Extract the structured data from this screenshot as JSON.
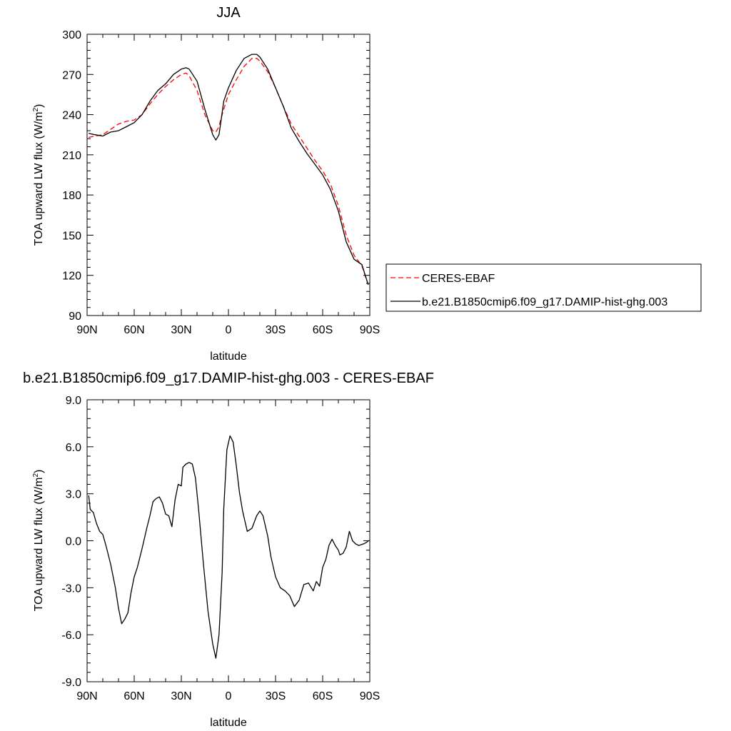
{
  "chart_data": [
    {
      "type": "line",
      "title": "JJA",
      "xlabel": "latitude",
      "ylabel": "TOA upward LW flux (W/m",
      "ylabel_sup": "2",
      "ylabel_close": ")",
      "xlim": [
        90,
        -90
      ],
      "ylim": [
        90,
        300
      ],
      "xticks": [
        90,
        60,
        30,
        0,
        -30,
        -60,
        -90
      ],
      "xtick_labels": [
        "90N",
        "60N",
        "30N",
        "0",
        "30S",
        "60S",
        "90S"
      ],
      "yticks": [
        90,
        120,
        150,
        180,
        210,
        240,
        270,
        300
      ],
      "ytick_labels": [
        "90",
        "120",
        "150",
        "180",
        "210",
        "240",
        "270",
        "300"
      ],
      "legend_position": "right",
      "series": [
        {
          "name": "CERES-EBAF",
          "color": "#ff0000",
          "dash": "dashed",
          "x": [
            89,
            85,
            80,
            75,
            70,
            65,
            60,
            55,
            50,
            45,
            40,
            35,
            30,
            27,
            25,
            20,
            15,
            10,
            8,
            6,
            5,
            3,
            0,
            -5,
            -10,
            -15,
            -18,
            -20,
            -25,
            -30,
            -35,
            -40,
            -45,
            -50,
            -55,
            -60,
            -65,
            -70,
            -75,
            -80,
            -85,
            -89
          ],
          "y": [
            223,
            224,
            225,
            229,
            233,
            235,
            236,
            240,
            248,
            255,
            261,
            266,
            270,
            271,
            269,
            258,
            240,
            228,
            227,
            231,
            236,
            244,
            255,
            266,
            276,
            282,
            282,
            280,
            272,
            260,
            246,
            233,
            224,
            215,
            206,
            198,
            188,
            172,
            150,
            135,
            127,
            113
          ]
        },
        {
          "name": "b.e21.B1850cmip6.f09_g17.DAMIP-hist-ghg.003",
          "color": "#000000",
          "dash": "solid",
          "x": [
            89,
            85,
            80,
            75,
            70,
            65,
            60,
            55,
            50,
            45,
            40,
            35,
            30,
            27,
            25,
            20,
            15,
            10,
            8,
            6,
            5,
            3,
            0,
            -5,
            -10,
            -15,
            -18,
            -20,
            -25,
            -30,
            -35,
            -40,
            -45,
            -50,
            -55,
            -60,
            -65,
            -70,
            -75,
            -80,
            -85,
            -89
          ],
          "y": [
            226,
            225,
            224,
            227,
            228,
            231,
            234,
            240,
            250,
            258,
            263,
            270,
            274,
            275,
            274,
            265,
            244,
            225,
            221,
            225,
            233,
            250,
            260,
            273,
            282,
            285,
            285,
            283,
            274,
            260,
            246,
            230,
            220,
            211,
            203,
            195,
            184,
            168,
            145,
            132,
            128,
            113
          ]
        }
      ]
    },
    {
      "type": "line",
      "title": "b.e21.B1850cmip6.f09_g17.DAMIP-hist-ghg.003 - CERES-EBAF",
      "xlabel": "latitude",
      "ylabel": "TOA upward LW flux (W/m",
      "ylabel_sup": "2",
      "ylabel_close": ")",
      "xlim": [
        90,
        -90
      ],
      "ylim": [
        -9,
        9
      ],
      "xticks": [
        90,
        60,
        30,
        0,
        -30,
        -60,
        -90
      ],
      "xtick_labels": [
        "90N",
        "60N",
        "30N",
        "0",
        "30S",
        "60S",
        "90S"
      ],
      "yticks": [
        -9,
        -6,
        -3,
        0,
        3,
        6,
        9
      ],
      "ytick_labels": [
        "-9.0",
        "-6.0",
        "-3.0",
        "0.0",
        "3.0",
        "6.0",
        "9.0"
      ],
      "series": [
        {
          "color": "#000000",
          "dash": "solid",
          "x": [
            89,
            88,
            86,
            84,
            82,
            80,
            78,
            75,
            72,
            70,
            68,
            66,
            64,
            62,
            60,
            58,
            55,
            52,
            50,
            48,
            46,
            44,
            42,
            40,
            38,
            36,
            34,
            32,
            30,
            29,
            27,
            25,
            23,
            21,
            19,
            16,
            13,
            10,
            8,
            6,
            4,
            3,
            1,
            -1,
            -3,
            -5,
            -7,
            -9,
            -12,
            -15,
            -18,
            -20,
            -22,
            -25,
            -27,
            -30,
            -33,
            -36,
            -39,
            -42,
            -45,
            -48,
            -51,
            -54,
            -56,
            -58,
            -60,
            -62,
            -64,
            -66,
            -68,
            -70,
            -71,
            -73,
            -75,
            -77,
            -79,
            -81,
            -83,
            -86,
            -88,
            -89,
            -90
          ],
          "y": [
            2.9,
            2.0,
            1.8,
            1.1,
            0.6,
            0.4,
            -0.3,
            -1.5,
            -3.0,
            -4.3,
            -5.3,
            -5.0,
            -4.6,
            -3.3,
            -2.3,
            -1.7,
            -0.5,
            0.8,
            1.6,
            2.5,
            2.7,
            2.8,
            2.4,
            1.7,
            1.6,
            0.9,
            2.6,
            3.6,
            3.5,
            4.7,
            4.9,
            5.0,
            4.9,
            4.0,
            2.0,
            -1.4,
            -4.5,
            -6.6,
            -7.5,
            -6.0,
            -2.0,
            2.0,
            5.8,
            6.7,
            6.3,
            4.8,
            3.1,
            1.9,
            0.6,
            0.8,
            1.6,
            1.9,
            1.6,
            0.3,
            -1.0,
            -2.3,
            -3.0,
            -3.2,
            -3.5,
            -4.2,
            -3.8,
            -2.8,
            -2.7,
            -3.2,
            -2.6,
            -2.9,
            -1.7,
            -1.2,
            -0.3,
            0.1,
            -0.3,
            -0.6,
            -0.9,
            -0.8,
            -0.4,
            0.6,
            0.0,
            -0.2,
            -0.3,
            -0.2,
            -0.1,
            0.0,
            0.0
          ]
        }
      ]
    }
  ]
}
